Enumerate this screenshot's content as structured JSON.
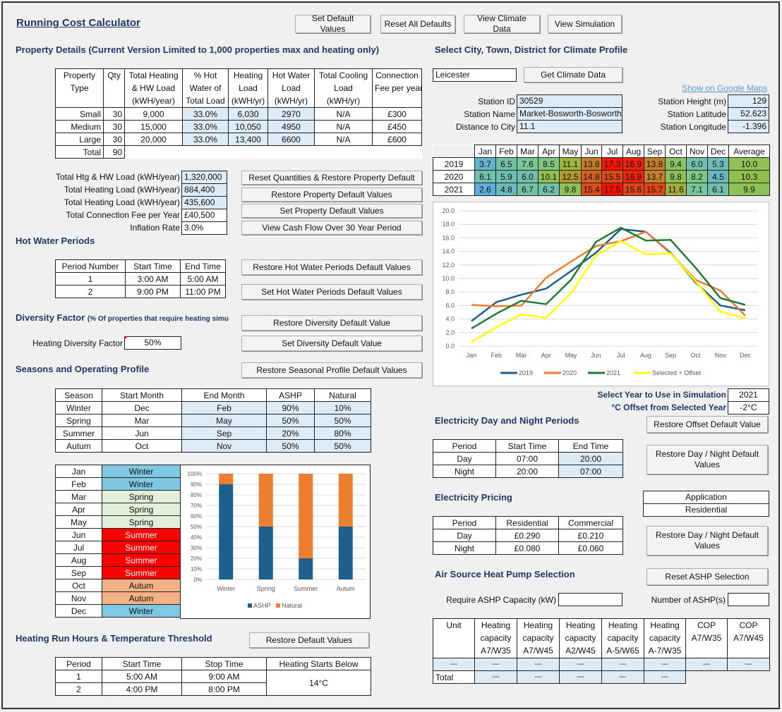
{
  "title": "Running Cost Calculator",
  "top_buttons": [
    "Set Default Values",
    "Reset All Defaults",
    "View Climate Data",
    "View Simulation"
  ],
  "property": {
    "heading": "Property Details (Current Version Limited to 1,000 properties max and heating only)",
    "headers": [
      [
        "Property",
        "Type"
      ],
      [
        "Qty"
      ],
      [
        "Total Heating",
        "& HW Load",
        "(kWH/year)"
      ],
      [
        "% Hot",
        "Water of",
        "Total Load"
      ],
      [
        "Heating",
        "Load",
        "(kWH/yr)"
      ],
      [
        "Hot Water",
        "Load",
        "(kWH/yr)"
      ],
      [
        "Total Cooling",
        "Load",
        "(kWH/yr)"
      ],
      [
        "Connection",
        "Fee per year"
      ]
    ],
    "rows": [
      [
        "Small",
        "30",
        "9,000",
        "33.0%",
        "6,030",
        "2970",
        "N/A",
        "£300"
      ],
      [
        "Medium",
        "30",
        "15,000",
        "33.0%",
        "10,050",
        "4950",
        "N/A",
        "£450"
      ],
      [
        "Large",
        "30",
        "20,000",
        "33.0%",
        "13,400",
        "6600",
        "N/A",
        "£600"
      ]
    ],
    "total_label": "Total",
    "total_qty": "90"
  },
  "summary": [
    {
      "label": "Total Htg & HW Load (kWH/year)",
      "value": "1,320,000",
      "button": "Reset Quantities & Restore Property Default"
    },
    {
      "label": "Total Heating Load (kWH/year)",
      "value": "884,400",
      "button": "Restore Property Default Values"
    },
    {
      "label": "Total Heating Load (kWH/year)",
      "value": "435,600",
      "button": "Set Property Default Values"
    },
    {
      "label": "Total Connection Fee per Year",
      "value": "£40,500",
      "button": ""
    },
    {
      "label": "Inflation Rate",
      "value": "3.0%",
      "button": "View Cash Flow Over 30 Year Period"
    }
  ],
  "hot_water": {
    "heading": "Hot Water Periods",
    "headers": [
      "Period Number",
      "Start Time",
      "End Time"
    ],
    "rows": [
      [
        "1",
        "3:00 AM",
        "5:00 AM"
      ],
      [
        "2",
        "9:00 PM",
        "11:00 PM"
      ]
    ],
    "buttons": [
      "Restore Hot Water Periods Default Values",
      "Set Hot Water Periods Default Values"
    ]
  },
  "diversity": {
    "heading": "Diversity Factor",
    "heading_small": "(% Of properties that require heating simu",
    "label": "Heating Diversity Factor",
    "value": "50%",
    "buttons": [
      "Restore Diversity Default Value",
      "Set Diversity Default Value"
    ]
  },
  "seasons": {
    "heading": "Seasons and Operating Profile",
    "button": "Restore Seasonal Profile Default Values",
    "headers": [
      "Season",
      "Start Month",
      "End Month",
      "ASHP",
      "Natural"
    ],
    "rows": [
      [
        "Winter",
        "Dec",
        "Feb",
        "90%",
        "10%"
      ],
      [
        "Spring",
        "Mar",
        "May",
        "50%",
        "50%"
      ],
      [
        "Summer",
        "Jun",
        "Sep",
        "20%",
        "80%"
      ],
      [
        "Autum",
        "Oct",
        "Nov",
        "50%",
        "50%"
      ]
    ]
  },
  "months": [
    [
      "Jan",
      "Winter"
    ],
    [
      "Feb",
      "Winter"
    ],
    [
      "Mar",
      "Spring"
    ],
    [
      "Apr",
      "Spring"
    ],
    [
      "May",
      "Spring"
    ],
    [
      "Jun",
      "Summer"
    ],
    [
      "Jul",
      "Summer"
    ],
    [
      "Aug",
      "Summer"
    ],
    [
      "Sep",
      "Summer"
    ],
    [
      "Oct",
      "Autum"
    ],
    [
      "Nov",
      "Autum"
    ],
    [
      "Dec",
      "Winter"
    ]
  ],
  "season_colors": {
    "Winter": "#7ec8e3",
    "Spring": "#e2efda",
    "Summer": "#ff0000",
    "Autum": "#f4b183"
  },
  "run_hours": {
    "heading": "Heating Run Hours & Temperature Threshold",
    "button": "Restore Default Values",
    "headers": [
      "Period",
      "Start Time",
      "Stop Time",
      "Heating Starts Below"
    ],
    "rows": [
      [
        "1",
        "5:00 AM",
        "9:00 AM"
      ],
      [
        "2",
        "4:00 PM",
        "8:00 PM"
      ]
    ],
    "threshold": "14°C"
  },
  "climate": {
    "heading": "Select City, Town, District for Climate Profile",
    "city": "Leicester",
    "button": "Get Climate Data",
    "map_link": "Show on Google Maps",
    "station": [
      [
        "Station ID",
        "30529"
      ],
      [
        "Station Name",
        "Market-Bosworth-Bosworth"
      ],
      [
        "Distance to City",
        "11.1"
      ]
    ],
    "station_r": [
      [
        "Station Height (m)",
        "129"
      ],
      [
        "Station Latitude",
        "52.623"
      ],
      [
        "Station Longitude",
        "-1.396"
      ]
    ],
    "months": [
      "Jan",
      "Feb",
      "Mar",
      "Apr",
      "May",
      "Jun",
      "Jul",
      "Aug",
      "Sep",
      "Oct",
      "Nov",
      "Dec",
      "Average"
    ],
    "rows": [
      {
        "year": "2019",
        "vals": [
          "3.7",
          "6.5",
          "7.6",
          "8.5",
          "11.1",
          "13.8",
          "17.3",
          "16.9",
          "13.8",
          "9.4",
          "6.0",
          "5.3",
          "10.0"
        ]
      },
      {
        "year": "2020",
        "vals": [
          "6.1",
          "5.9",
          "6.0",
          "10.1",
          "12.5",
          "14.8",
          "15.5",
          "16.9",
          "13.7",
          "9.8",
          "8.2",
          "4.5",
          "10.3"
        ]
      },
      {
        "year": "2021",
        "vals": [
          "2.6",
          "4.8",
          "6.7",
          "6.2",
          "9.8",
          "15.4",
          "17.5",
          "15.6",
          "15.7",
          "11.6",
          "7.1",
          "6.1",
          "9.9"
        ]
      }
    ],
    "select_year_label": "Select Year to Use in Simulation",
    "select_year": "2021",
    "offset_label": "°C Offset from Selected Year",
    "offset": "-2°C",
    "offset_button": "Restore Offset Default Value"
  },
  "electricity": {
    "heading": "Electricity Day and Night Periods",
    "headers": [
      "Period",
      "Start Time",
      "End Time"
    ],
    "rows": [
      [
        "Day",
        "07:00",
        "20:00"
      ],
      [
        "Night",
        "20:00",
        "07:00"
      ]
    ],
    "button": "Restore Day / Night  Default Values",
    "pricing_heading": "Electricity Pricing",
    "pricing_headers": [
      "Period",
      "Residential",
      "Commercial"
    ],
    "pricing_rows": [
      [
        "Day",
        "£0.290",
        "£0.210"
      ],
      [
        "Night",
        "£0.080",
        "£0.060"
      ]
    ],
    "application_label": "Application",
    "application_value": "Residential",
    "pricing_button": "Restore Day / Night  Default Values"
  },
  "ashp": {
    "heading": "Air Source Heat Pump Selection",
    "button": "Reset ASHP Selection",
    "capacity_label": "Require ASHP Capacity (kW)",
    "capacity_value": "",
    "count_label": "Number of ASHP(s)",
    "count_value": "",
    "headers": [
      [
        "Unit"
      ],
      [
        "Heating",
        "capacity",
        "A7/W35"
      ],
      [
        "Heating",
        "capacity",
        "A7/W45"
      ],
      [
        "Heating",
        "capacity",
        "A2/W45"
      ],
      [
        "Heating",
        "capacity",
        "A-5/W65"
      ],
      [
        "Heating",
        "capacity",
        "A-7/W35"
      ],
      [
        "COP",
        "A7/W35"
      ],
      [
        "COP",
        "A7/W45"
      ]
    ],
    "row1": [
      "---",
      "---",
      "---",
      "---",
      "---",
      "---",
      "---",
      "---"
    ],
    "row2": [
      "Total",
      "---",
      "---",
      "---",
      "---",
      "---"
    ]
  },
  "chart_data": [
    {
      "type": "line",
      "categories": [
        "Jan",
        "Feb",
        "Mar",
        "Apr",
        "May",
        "Jun",
        "Jul",
        "Aug",
        "Sep",
        "Oct",
        "Nov",
        "Dec"
      ],
      "series": [
        {
          "name": "2019",
          "color": "#1f5f8b",
          "values": [
            3.7,
            6.5,
            7.6,
            8.5,
            11.1,
            13.8,
            17.3,
            16.9,
            13.8,
            9.4,
            6.0,
            5.3
          ]
        },
        {
          "name": "2020",
          "color": "#ed7d31",
          "values": [
            6.1,
            5.9,
            6.0,
            10.1,
            12.5,
            14.8,
            15.5,
            16.9,
            13.7,
            9.8,
            8.2,
            4.5
          ]
        },
        {
          "name": "2021",
          "color": "#1e7d32",
          "values": [
            2.6,
            4.8,
            6.7,
            6.2,
            9.8,
            15.4,
            17.5,
            15.6,
            15.7,
            11.6,
            7.1,
            6.1
          ]
        },
        {
          "name": "Selected + Offset",
          "color": "#ffff00",
          "values": [
            0.6,
            2.8,
            4.7,
            4.2,
            7.8,
            13.4,
            15.5,
            13.6,
            13.7,
            9.6,
            5.1,
            4.1
          ]
        }
      ],
      "yticks": [
        "20.0",
        "18.0",
        "16.0",
        "14.0",
        "12.0",
        "10.0",
        "8.0",
        "6.0",
        "4.0",
        "2.0",
        "0.0"
      ],
      "ylim": [
        0,
        20
      ],
      "legend": "bottom",
      "grid": true
    },
    {
      "type": "bar",
      "stacked": true,
      "categories": [
        "Winter",
        "Spring",
        "Summer",
        "Autum"
      ],
      "series": [
        {
          "name": "ASHP",
          "color": "#1f5f8b",
          "values": [
            90,
            50,
            20,
            50
          ]
        },
        {
          "name": "Natural",
          "color": "#ed7d31",
          "values": [
            10,
            50,
            80,
            50
          ]
        }
      ],
      "yticks": [
        "100%",
        "90%",
        "80%",
        "70%",
        "60%",
        "50%",
        "40%",
        "30%",
        "20%",
        "10%",
        "0%"
      ],
      "ylim": [
        0,
        100
      ],
      "legend": "bottom",
      "grid": true
    }
  ]
}
